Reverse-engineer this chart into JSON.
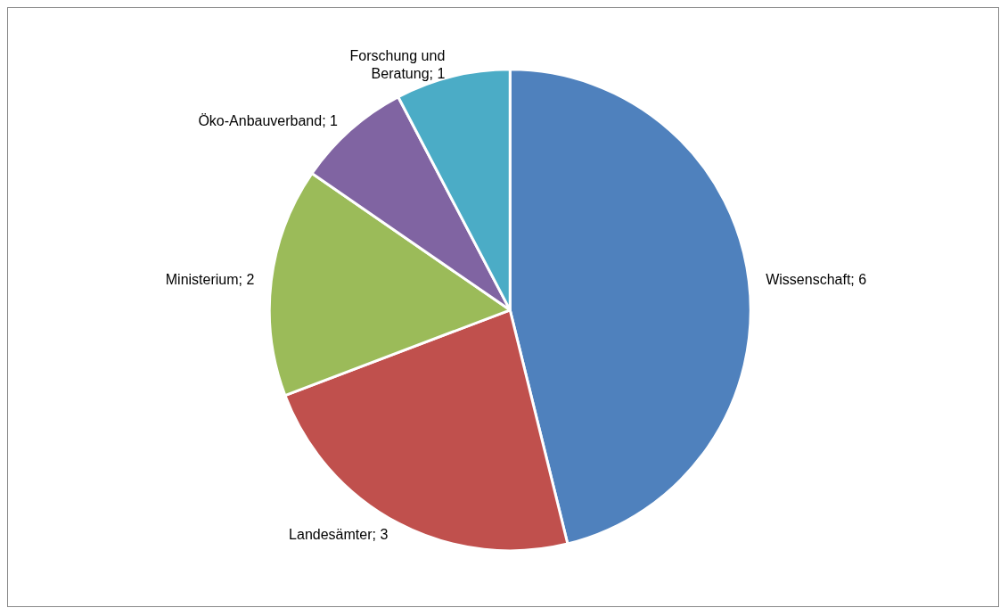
{
  "chart_data": {
    "type": "pie",
    "categories": [
      "Wissenschaft",
      "Landesämter",
      "Ministerium",
      "Öko-Anbauverband",
      "Forschung und Beratung"
    ],
    "values": [
      6,
      3,
      2,
      1,
      1
    ],
    "colors": [
      "#4f81bd",
      "#c0504d",
      "#9bbb59",
      "#8064a2",
      "#4bacc6"
    ],
    "value_labels": [
      "; 6",
      "; 3",
      "; 2",
      "; 1",
      "; 1"
    ],
    "legend": false
  }
}
